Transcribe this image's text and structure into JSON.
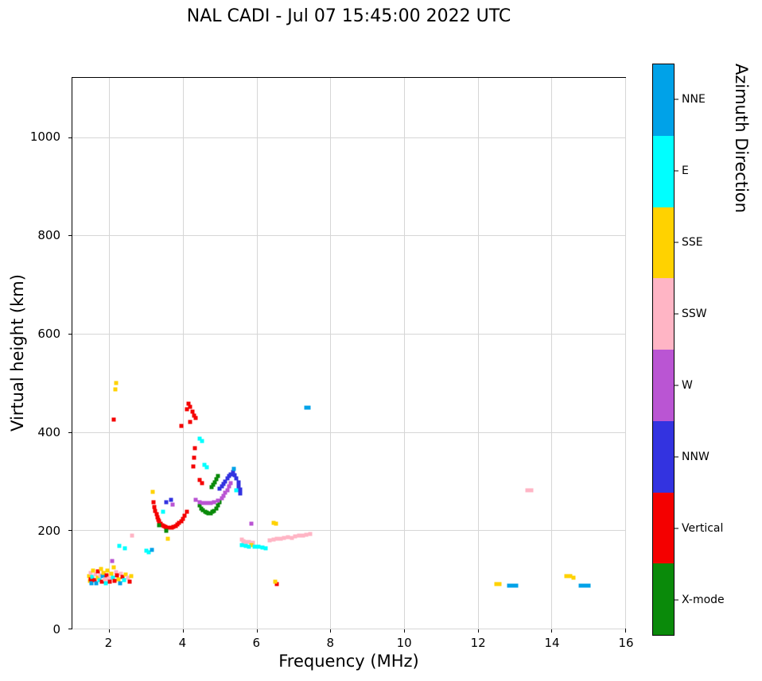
{
  "chart_data": {
    "type": "scatter",
    "title": "NAL CADI - Jul 07 15:45:00 2022 UTC",
    "xlabel": "Frequency (MHz)",
    "ylabel": "Virtual height (km)",
    "xlim": [
      1,
      16
    ],
    "ylim": [
      0,
      1121
    ],
    "x_ticks": [
      2,
      4,
      6,
      8,
      10,
      12,
      14,
      16
    ],
    "y_ticks": [
      0,
      200,
      400,
      600,
      800,
      1000
    ],
    "grid": true,
    "legend": {
      "title": "Azimuth Direction",
      "position": "right-colorbar",
      "categories": [
        {
          "label": "NNE",
          "color": "#00A2E8"
        },
        {
          "label": "E",
          "color": "#00FFFF"
        },
        {
          "label": "SSE",
          "color": "#FFD200"
        },
        {
          "label": "SSW",
          "color": "#FFB5C5"
        },
        {
          "label": "W",
          "color": "#BA55D3"
        },
        {
          "label": "NNW",
          "color": "#3333E0"
        },
        {
          "label": "Vertical",
          "color": "#F40000"
        },
        {
          "label": "X-mode",
          "color": "#0A8A0A"
        }
      ]
    },
    "points": [
      [
        1.45,
        107,
        "SSE"
      ],
      [
        1.48,
        97,
        "SSE"
      ],
      [
        1.5,
        113,
        "SSW"
      ],
      [
        1.5,
        100,
        "Vertical"
      ],
      [
        1.52,
        92,
        "NNE"
      ],
      [
        1.55,
        105,
        "E"
      ],
      [
        1.57,
        118,
        "SSE"
      ],
      [
        1.6,
        99,
        "Vertical"
      ],
      [
        1.62,
        110,
        "SSW"
      ],
      [
        1.65,
        93,
        "NNE"
      ],
      [
        1.68,
        104,
        "SSE"
      ],
      [
        1.7,
        116,
        "Vertical"
      ],
      [
        1.73,
        98,
        "E"
      ],
      [
        1.75,
        108,
        "SSW"
      ],
      [
        1.78,
        121,
        "SSE"
      ],
      [
        1.8,
        95,
        "Vertical"
      ],
      [
        1.83,
        106,
        "NNE"
      ],
      [
        1.85,
        113,
        "SSE"
      ],
      [
        1.88,
        100,
        "SSW"
      ],
      [
        1.9,
        92,
        "E"
      ],
      [
        1.93,
        109,
        "Vertical"
      ],
      [
        1.95,
        118,
        "SSE"
      ],
      [
        2.0,
        102,
        "SSW"
      ],
      [
        2.02,
        95,
        "Vertical"
      ],
      [
        2.05,
        111,
        "SSE"
      ],
      [
        2.08,
        138,
        "W"
      ],
      [
        2.1,
        104,
        "E"
      ],
      [
        2.12,
        125,
        "SSE"
      ],
      [
        2.15,
        97,
        "Vertical"
      ],
      [
        2.18,
        115,
        "SSW"
      ],
      [
        2.2,
        108,
        "Vertical"
      ],
      [
        2.25,
        100,
        "SSE"
      ],
      [
        2.3,
        93,
        "NNE"
      ],
      [
        2.32,
        112,
        "SSW"
      ],
      [
        2.35,
        105,
        "Vertical"
      ],
      [
        2.4,
        98,
        "E"
      ],
      [
        2.45,
        110,
        "SSE"
      ],
      [
        2.5,
        103,
        "SSW"
      ],
      [
        2.55,
        95,
        "Vertical"
      ],
      [
        2.6,
        107,
        "SSE"
      ],
      [
        2.13,
        426,
        "Vertical"
      ],
      [
        2.19,
        500,
        "SSE"
      ],
      [
        2.17,
        487,
        "SSE"
      ],
      [
        2.28,
        168,
        "E"
      ],
      [
        2.42,
        163,
        "E"
      ],
      [
        2.62,
        190,
        "SSW"
      ],
      [
        3.0,
        158,
        "E"
      ],
      [
        3.08,
        156,
        "E"
      ],
      [
        3.15,
        160,
        "NNE"
      ],
      [
        3.18,
        278,
        "SSE"
      ],
      [
        3.6,
        182,
        "SSE"
      ],
      [
        3.2,
        258,
        "Vertical"
      ],
      [
        3.22,
        248,
        "Vertical"
      ],
      [
        3.25,
        240,
        "Vertical"
      ],
      [
        3.28,
        233,
        "Vertical"
      ],
      [
        3.3,
        227,
        "Vertical"
      ],
      [
        3.33,
        222,
        "Vertical"
      ],
      [
        3.36,
        218,
        "Vertical"
      ],
      [
        3.4,
        214,
        "Vertical"
      ],
      [
        3.44,
        211,
        "Vertical"
      ],
      [
        3.48,
        209,
        "Vertical"
      ],
      [
        3.52,
        207,
        "Vertical"
      ],
      [
        3.56,
        206,
        "Vertical"
      ],
      [
        3.6,
        205,
        "Vertical"
      ],
      [
        3.65,
        205,
        "Vertical"
      ],
      [
        3.7,
        206,
        "Vertical"
      ],
      [
        3.75,
        207,
        "Vertical"
      ],
      [
        3.8,
        209,
        "Vertical"
      ],
      [
        3.85,
        212,
        "Vertical"
      ],
      [
        3.9,
        215,
        "Vertical"
      ],
      [
        3.95,
        219,
        "Vertical"
      ],
      [
        4.0,
        224,
        "Vertical"
      ],
      [
        4.05,
        230,
        "Vertical"
      ],
      [
        4.1,
        237,
        "Vertical"
      ],
      [
        3.35,
        210,
        "X-mode"
      ],
      [
        3.55,
        199,
        "X-mode"
      ],
      [
        3.45,
        237,
        "E"
      ],
      [
        3.55,
        257,
        "NNW"
      ],
      [
        3.68,
        262,
        "NNW"
      ],
      [
        3.72,
        252,
        "W"
      ],
      [
        3.95,
        412,
        "Vertical"
      ],
      [
        4.1,
        447,
        "Vertical"
      ],
      [
        4.15,
        457,
        "Vertical"
      ],
      [
        4.2,
        452,
        "Vertical"
      ],
      [
        4.25,
        442,
        "Vertical"
      ],
      [
        4.3,
        434,
        "Vertical"
      ],
      [
        4.35,
        428,
        "Vertical"
      ],
      [
        4.2,
        420,
        "Vertical"
      ],
      [
        4.32,
        368,
        "Vertical"
      ],
      [
        4.3,
        347,
        "Vertical"
      ],
      [
        4.28,
        330,
        "Vertical"
      ],
      [
        4.45,
        386,
        "E"
      ],
      [
        4.52,
        382,
        "E"
      ],
      [
        4.45,
        302,
        "Vertical"
      ],
      [
        4.52,
        296,
        "Vertical"
      ],
      [
        4.58,
        334,
        "E"
      ],
      [
        4.64,
        328,
        "E"
      ],
      [
        4.45,
        250,
        "X-mode"
      ],
      [
        4.5,
        245,
        "X-mode"
      ],
      [
        4.55,
        241,
        "X-mode"
      ],
      [
        4.6,
        238,
        "X-mode"
      ],
      [
        4.65,
        236,
        "X-mode"
      ],
      [
        4.7,
        235,
        "X-mode"
      ],
      [
        4.75,
        235,
        "X-mode"
      ],
      [
        4.8,
        237,
        "X-mode"
      ],
      [
        4.85,
        240,
        "X-mode"
      ],
      [
        4.9,
        245,
        "X-mode"
      ],
      [
        4.95,
        251,
        "X-mode"
      ],
      [
        5.0,
        258,
        "X-mode"
      ],
      [
        4.78,
        288,
        "X-mode"
      ],
      [
        4.82,
        293,
        "X-mode"
      ],
      [
        4.86,
        298,
        "X-mode"
      ],
      [
        4.9,
        304,
        "X-mode"
      ],
      [
        4.95,
        310,
        "X-mode"
      ],
      [
        4.35,
        262,
        "W"
      ],
      [
        4.45,
        258,
        "W"
      ],
      [
        4.55,
        256,
        "W"
      ],
      [
        4.65,
        255,
        "W"
      ],
      [
        4.75,
        255,
        "W"
      ],
      [
        4.85,
        257,
        "W"
      ],
      [
        4.95,
        260,
        "W"
      ],
      [
        5.05,
        265,
        "W"
      ],
      [
        5.1,
        270,
        "W"
      ],
      [
        5.15,
        276,
        "W"
      ],
      [
        5.2,
        282,
        "W"
      ],
      [
        5.25,
        289,
        "W"
      ],
      [
        5.3,
        296,
        "W"
      ],
      [
        5.0,
        285,
        "NNW"
      ],
      [
        5.05,
        290,
        "NNW"
      ],
      [
        5.1,
        295,
        "NNW"
      ],
      [
        5.15,
        300,
        "NNW"
      ],
      [
        5.2,
        305,
        "NNW"
      ],
      [
        5.25,
        310,
        "NNW"
      ],
      [
        5.3,
        314,
        "NNW"
      ],
      [
        5.35,
        318,
        "NNW"
      ],
      [
        5.4,
        312,
        "NNW"
      ],
      [
        5.45,
        305,
        "NNW"
      ],
      [
        5.5,
        298,
        "NNW"
      ],
      [
        5.5,
        290,
        "NNW"
      ],
      [
        5.55,
        283,
        "NNW"
      ],
      [
        5.55,
        275,
        "NNW"
      ],
      [
        5.38,
        325,
        "NNE"
      ],
      [
        5.45,
        282,
        "E"
      ],
      [
        5.85,
        213,
        "W"
      ],
      [
        6.45,
        215,
        "SSE"
      ],
      [
        6.52,
        213,
        "SSE"
      ],
      [
        5.6,
        181,
        "SSW"
      ],
      [
        5.65,
        178,
        "SSW"
      ],
      [
        5.7,
        177,
        "SSW"
      ],
      [
        5.8,
        176,
        "SSW"
      ],
      [
        5.9,
        174,
        "SSW"
      ],
      [
        5.85,
        170,
        "SSE"
      ],
      [
        5.6,
        170,
        "E"
      ],
      [
        5.7,
        168,
        "E"
      ],
      [
        5.8,
        167,
        "E"
      ],
      [
        5.95,
        166,
        "E"
      ],
      [
        6.05,
        167,
        "E"
      ],
      [
        6.15,
        165,
        "E"
      ],
      [
        6.25,
        163,
        "E"
      ],
      [
        6.35,
        179,
        "SSW"
      ],
      [
        6.45,
        181,
        "SSW"
      ],
      [
        6.55,
        183,
        "SSW"
      ],
      [
        6.65,
        182,
        "SSW"
      ],
      [
        6.75,
        185,
        "SSW"
      ],
      [
        6.85,
        186,
        "SSW"
      ],
      [
        6.95,
        185,
        "SSW"
      ],
      [
        7.05,
        188,
        "SSW"
      ],
      [
        7.15,
        190,
        "SSW"
      ],
      [
        7.25,
        189,
        "SSW"
      ],
      [
        7.35,
        191,
        "SSW"
      ],
      [
        7.45,
        192,
        "SSW"
      ],
      [
        6.55,
        91,
        "Vertical"
      ],
      [
        6.5,
        95,
        "SSE"
      ],
      [
        7.35,
        450,
        "NNE"
      ],
      [
        7.42,
        450,
        "NNE"
      ],
      [
        12.5,
        90,
        "SSE"
      ],
      [
        12.6,
        90,
        "SSE"
      ],
      [
        12.85,
        88,
        "NNE"
      ],
      [
        12.95,
        88,
        "NNE"
      ],
      [
        13.05,
        88,
        "NNE"
      ],
      [
        13.35,
        281,
        "SSW"
      ],
      [
        13.45,
        281,
        "SSW"
      ],
      [
        14.4,
        106,
        "SSE"
      ],
      [
        14.5,
        106,
        "SSE"
      ],
      [
        14.6,
        104,
        "SSE"
      ],
      [
        14.8,
        88,
        "NNE"
      ],
      [
        14.9,
        88,
        "NNE"
      ],
      [
        15.0,
        88,
        "NNE"
      ]
    ]
  }
}
